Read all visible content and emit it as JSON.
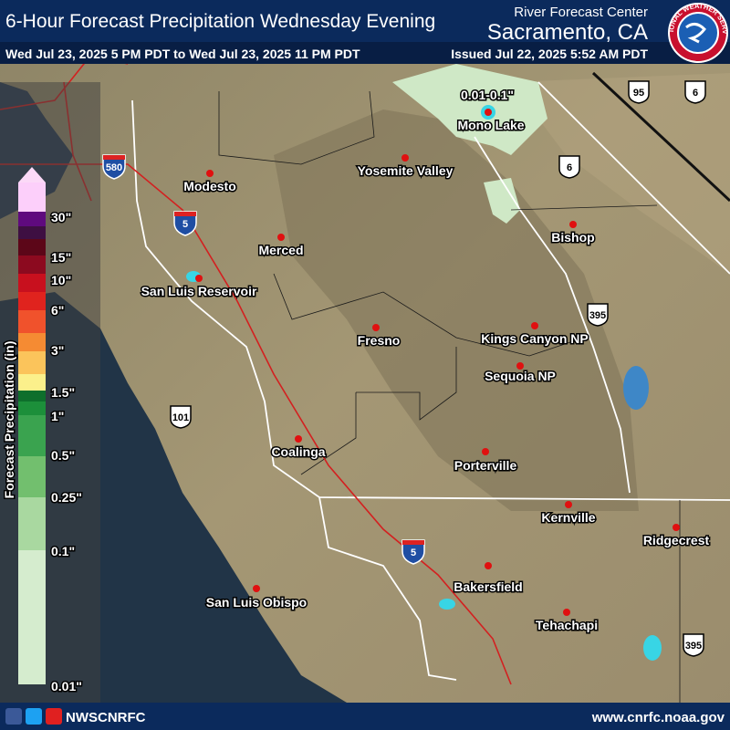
{
  "header": {
    "title": "6-Hour Forecast Precipitation Wednesday Evening",
    "period": "Wed Jul 23, 2025 5 PM PDT to Wed Jul 23, 2025 11 PM PDT",
    "office_line": "River Forecast Center",
    "office": "Sacramento, CA",
    "issued": "Issued Jul 22, 2025 5:52 AM PDT",
    "logo_text": "NATIONAL WEATHER SERVICE"
  },
  "legend": {
    "title": "Forecast Precipitation (in)",
    "labels": [
      "30\"",
      "15\"",
      "10\"",
      "6\"",
      "3\"",
      "1.5\"",
      "1\"",
      "0.5\"",
      "0.25\"",
      "0.1\"",
      "0.01\""
    ]
  },
  "annotation": "0.01-0.1\"",
  "cities": [
    "Modesto",
    "Merced",
    "San Luis Reservoir",
    "Yosemite Valley",
    "Mono Lake",
    "Bishop",
    "Fresno",
    "Kings Canyon NP",
    "Sequoia NP",
    "Coalinga",
    "Porterville",
    "Kernville",
    "Ridgecrest",
    "Bakersfield",
    "San Luis Obispo",
    "Tehachapi"
  ],
  "shields": [
    "580",
    "5",
    "5",
    "95",
    "6",
    "6",
    "395",
    "395",
    "101"
  ],
  "footer": {
    "social": "NWSCNRFC",
    "url": "www.cnrfc.noaa.gov"
  }
}
